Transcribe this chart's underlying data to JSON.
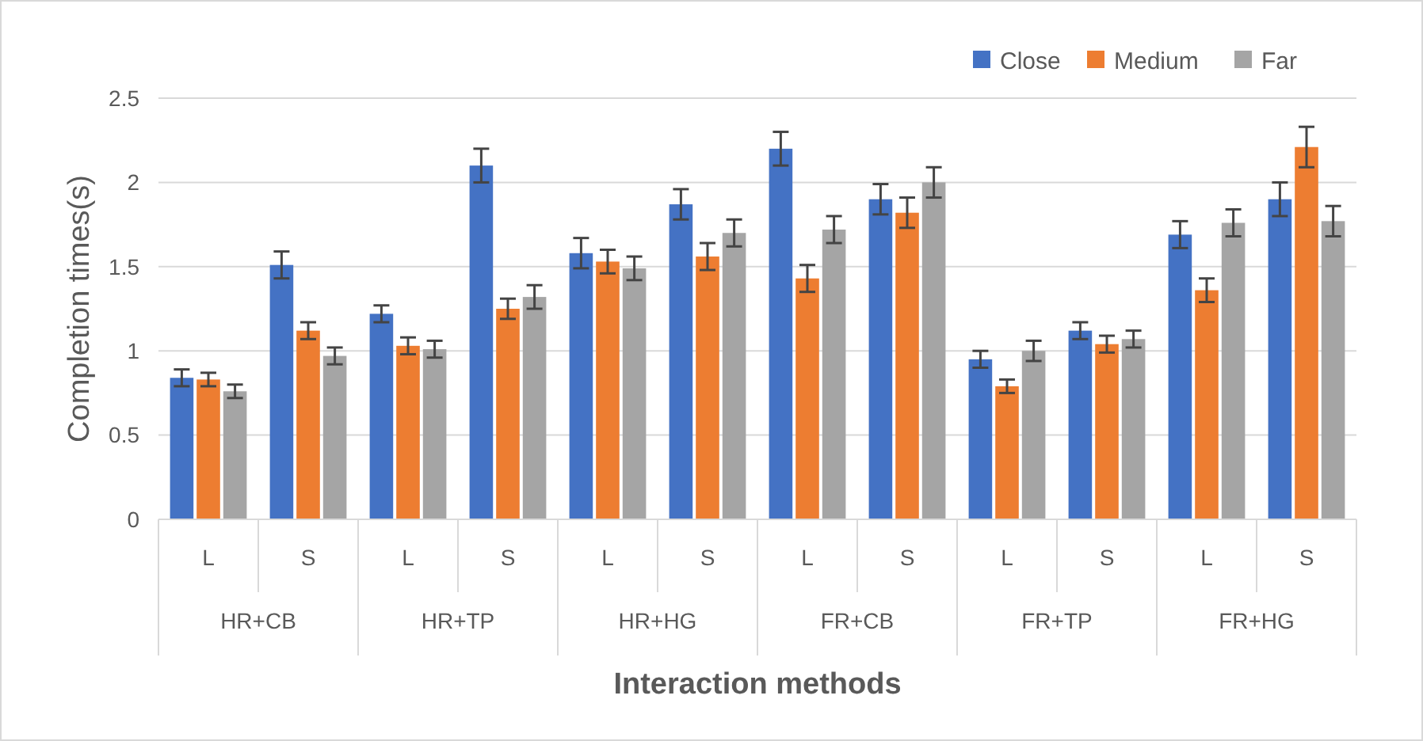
{
  "chart_data": {
    "type": "bar",
    "xlabel": "Interaction methods",
    "ylabel": "Completion times(s)",
    "categories": [
      "L",
      "S",
      "L",
      "S",
      "L",
      "S",
      "L",
      "S",
      "L",
      "S",
      "L",
      "S"
    ],
    "annotations": [
      "HR+CB",
      "HR+TP",
      "HR+HG",
      "FR+CB",
      "FR+TP",
      "FR+HG"
    ],
    "series": [
      {
        "name": "Close",
        "color": "#4472c4",
        "values": [
          0.84,
          1.51,
          1.22,
          2.1,
          1.58,
          1.87,
          2.2,
          1.9,
          0.95,
          1.12,
          1.69,
          1.9
        ],
        "errors": [
          0.05,
          0.08,
          0.05,
          0.1,
          0.09,
          0.09,
          0.1,
          0.09,
          0.05,
          0.05,
          0.08,
          0.1
        ]
      },
      {
        "name": "Medium",
        "color": "#ed7d31",
        "values": [
          0.83,
          1.12,
          1.03,
          1.25,
          1.53,
          1.56,
          1.43,
          1.82,
          0.79,
          1.04,
          1.36,
          2.21
        ],
        "errors": [
          0.04,
          0.05,
          0.05,
          0.06,
          0.07,
          0.08,
          0.08,
          0.09,
          0.04,
          0.05,
          0.07,
          0.12
        ]
      },
      {
        "name": "Far",
        "color": "#a5a5a5",
        "values": [
          0.76,
          0.97,
          1.01,
          1.32,
          1.49,
          1.7,
          1.72,
          2.0,
          1.0,
          1.07,
          1.76,
          1.77
        ],
        "errors": [
          0.04,
          0.05,
          0.05,
          0.07,
          0.07,
          0.08,
          0.08,
          0.09,
          0.06,
          0.05,
          0.08,
          0.09
        ]
      }
    ],
    "ylim": [
      0,
      2.5
    ],
    "yticks": [
      0,
      0.5,
      1,
      1.5,
      2,
      2.5
    ],
    "grid": "y",
    "legend": "top right"
  }
}
